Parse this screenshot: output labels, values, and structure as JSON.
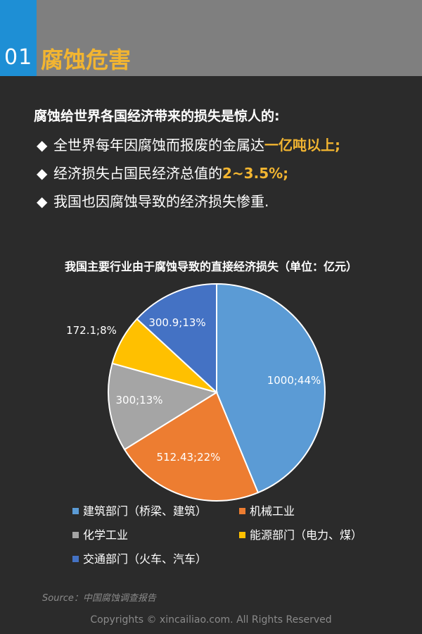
{
  "header": {
    "section_number": "01",
    "section_title": "腐蚀危害"
  },
  "intro": {
    "heading": "腐蚀给世界各国经济带来的损失是惊人的:",
    "bullet_mark": "◆",
    "bullets": [
      {
        "text": "全世界每年因腐蚀而报废的金属达",
        "highlight": "一亿吨以上;"
      },
      {
        "text": "经济损失占国民经济总值的",
        "highlight": "2~3.5%;"
      },
      {
        "text": "我国也因腐蚀导致的经济损失惨重.",
        "highlight": ""
      }
    ]
  },
  "chart_data": {
    "type": "pie",
    "title": "我国主要行业由于腐蚀导致的直接经济损失（单位：亿元）",
    "slices": [
      {
        "label": "建筑部门（桥梁、建筑）",
        "value": 1000,
        "percent": 44,
        "data_label": "1000;44%",
        "color": "#5b9bd5"
      },
      {
        "label": "机械工业",
        "value": 512.43,
        "percent": 22,
        "data_label": "512.43;22%",
        "color": "#ed7d31"
      },
      {
        "label": "化学工业",
        "value": 300,
        "percent": 13,
        "data_label": "300;13%",
        "color": "#a5a5a5"
      },
      {
        "label": "能源部门（电力、煤）",
        "value": 172.1,
        "percent": 8,
        "data_label": "172.1;8%",
        "color": "#ffc000"
      },
      {
        "label": "交通部门（火车、汽车）",
        "value": 300.9,
        "percent": 13,
        "data_label": "300.9;13%",
        "color": "#4472c4"
      }
    ],
    "legend_position": "bottom"
  },
  "footer": {
    "source": "Source：中国腐蚀调查报告",
    "copyright": "Copyrights © xincailiao.com. All Rights Reserved"
  }
}
